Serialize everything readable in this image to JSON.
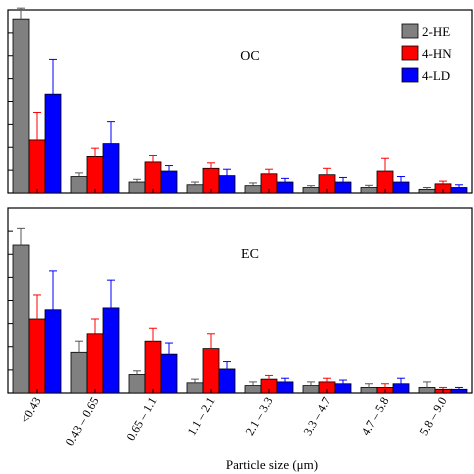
{
  "chart_data": {
    "type": "bar",
    "xlabel": "Particle size (μm)",
    "categories": [
      "<0.43",
      "0.43 – 0.65",
      "0.65 – 1.1",
      "1.1 – 2.1",
      "2.1 – 3.3",
      "3.3 – 4.7",
      "4.7 – 5.8",
      "5.8 – 9.0"
    ],
    "legend": {
      "placement": "top-right",
      "entries": [
        {
          "label": "2-HE",
          "color": "#808080"
        },
        {
          "label": "4-HN",
          "color": "#ff0000"
        },
        {
          "label": "4-LD",
          "color": "#0000ff"
        }
      ]
    },
    "panels": [
      {
        "label": "OC",
        "ylim": [
          0,
          1
        ],
        "series": [
          {
            "name": "2-HE",
            "color": "#808080",
            "values": [
              0.95,
              0.09,
              0.06,
              0.045,
              0.04,
              0.03,
              0.03,
              0.02
            ],
            "errors": [
              0.06,
              0.02,
              0.015,
              0.015,
              0.015,
              0.01,
              0.012,
              0.01
            ]
          },
          {
            "name": "4-HN",
            "color": "#ff0000",
            "values": [
              0.29,
              0.2,
              0.17,
              0.135,
              0.105,
              0.1,
              0.12,
              0.05
            ],
            "errors": [
              0.15,
              0.045,
              0.035,
              0.03,
              0.025,
              0.035,
              0.07,
              0.015
            ]
          },
          {
            "name": "4-LD",
            "color": "#0000ff",
            "values": [
              0.54,
              0.27,
              0.12,
              0.095,
              0.06,
              0.06,
              0.06,
              0.03
            ],
            "errors": [
              0.19,
              0.12,
              0.03,
              0.035,
              0.02,
              0.025,
              0.03,
              0.015
            ]
          }
        ]
      },
      {
        "label": "EC",
        "ylim": [
          0,
          1
        ],
        "series": [
          {
            "name": "2-HE",
            "color": "#808080",
            "values": [
              0.8,
              0.22,
              0.1,
              0.055,
              0.04,
              0.04,
              0.03,
              0.03
            ],
            "errors": [
              0.09,
              0.06,
              0.02,
              0.02,
              0.02,
              0.02,
              0.02,
              0.03
            ]
          },
          {
            "name": "4-HN",
            "color": "#ff0000",
            "values": [
              0.4,
              0.32,
              0.28,
              0.24,
              0.075,
              0.06,
              0.03,
              0.02
            ],
            "errors": [
              0.13,
              0.08,
              0.07,
              0.08,
              0.02,
              0.02,
              0.02,
              0.01
            ]
          },
          {
            "name": "4-LD",
            "color": "#0000ff",
            "values": [
              0.45,
              0.46,
              0.21,
              0.13,
              0.06,
              0.05,
              0.05,
              0.02
            ],
            "errors": [
              0.21,
              0.15,
              0.06,
              0.04,
              0.02,
              0.02,
              0.03,
              0.01
            ]
          }
        ]
      }
    ]
  }
}
